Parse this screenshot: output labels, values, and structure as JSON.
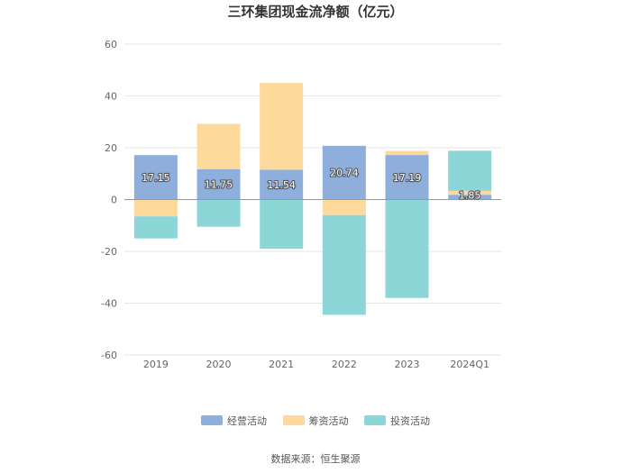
{
  "chart_data": {
    "type": "bar",
    "stacked": true,
    "title": "三环集团现金流净额（亿元）",
    "categories": [
      "2019",
      "2020",
      "2021",
      "2022",
      "2023",
      "2024Q1"
    ],
    "series": [
      {
        "name": "经营活动",
        "color": "#8eaedc",
        "values": [
          17.15,
          11.75,
          11.54,
          20.74,
          17.19,
          1.85
        ],
        "labels": [
          "17.15",
          "11.75",
          "11.54",
          "20.74",
          "17.19",
          "1.85"
        ]
      },
      {
        "name": "筹资活动",
        "color": "#fdd99b",
        "values": [
          -6.5,
          17.5,
          33.5,
          -6.0,
          1.6,
          1.5
        ]
      },
      {
        "name": "投资活动",
        "color": "#8dd6d7",
        "values": [
          -8.5,
          -10.5,
          -19.0,
          -38.5,
          -38.0,
          15.5
        ]
      }
    ],
    "ylim": [
      -60,
      60
    ],
    "yticks": [
      -60,
      -40,
      -20,
      0,
      20,
      40,
      60
    ],
    "grid": true,
    "legend_position": "bottom"
  },
  "source": "数据来源：恒生聚源"
}
